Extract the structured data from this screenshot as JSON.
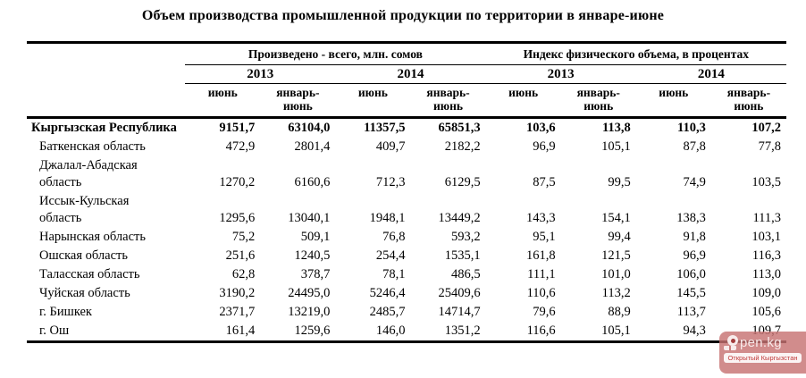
{
  "title": "Объем производства промышленной продукции по территории в январе-июне",
  "table": {
    "group_headers": [
      {
        "label": "Произведено - всего, млн. сомов"
      },
      {
        "label": "Индекс физического объема, в процентах"
      }
    ],
    "year_headers": [
      "2013",
      "2014",
      "2013",
      "2014"
    ],
    "period_headers": [
      "июнь",
      "январь-\nиюнь",
      "июнь",
      "январь-\nиюнь",
      "июнь",
      "январь-\nиюнь",
      "июнь",
      "январь-\nиюнь"
    ],
    "rows": [
      {
        "label": "Кыргызская Республика",
        "values": [
          "9151,7",
          "63104,0",
          "11357,5",
          "65851,3",
          "103,6",
          "113,8",
          "110,3",
          "107,2"
        ]
      },
      {
        "label": "Баткенская область",
        "values": [
          "472,9",
          "2801,4",
          "409,7",
          "2182,2",
          "96,9",
          "105,1",
          "87,8",
          "77,8"
        ]
      },
      {
        "label": "Джалал-Абадская\nобласть",
        "values": [
          "1270,2",
          "6160,6",
          "712,3",
          "6129,5",
          "87,5",
          "99,5",
          "74,9",
          "103,5"
        ]
      },
      {
        "label": "Иссык-Кульская\nобласть",
        "values": [
          "1295,6",
          "13040,1",
          "1948,1",
          "13449,2",
          "143,3",
          "154,1",
          "138,3",
          "111,3"
        ]
      },
      {
        "label": "Нарынская область",
        "values": [
          "75,2",
          "509,1",
          "76,8",
          "593,2",
          "95,1",
          "99,4",
          "91,8",
          "103,1"
        ]
      },
      {
        "label": "Ошская область",
        "values": [
          "251,6",
          "1240,5",
          "254,4",
          "1535,1",
          "161,8",
          "121,5",
          "96,9",
          "116,3"
        ]
      },
      {
        "label": "Таласская область",
        "values": [
          "62,8",
          "378,7",
          "78,1",
          "486,5",
          "111,1",
          "101,0",
          "106,0",
          "113,0"
        ]
      },
      {
        "label": "Чуйская область",
        "values": [
          "3190,2",
          "24495,0",
          "5246,4",
          "25409,6",
          "110,6",
          "113,2",
          "145,5",
          "109,0"
        ]
      },
      {
        "label": "г. Бишкек",
        "values": [
          "2371,7",
          "13219,0",
          "2485,7",
          "14714,7",
          "79,6",
          "88,9",
          "113,7",
          "105,6"
        ]
      },
      {
        "label": "г. Ош",
        "values": [
          "161,4",
          "1259,6",
          "146,0",
          "1351,2",
          "116,6",
          "105,1",
          "94,3",
          "109,7"
        ]
      }
    ]
  },
  "watermark": {
    "logo_text": "pen.kg",
    "caption": "Открытый Кыргызстан",
    "bg_color": "#c77373",
    "logo_text_color": "#f8eaea",
    "caption_color": "#c03a3a"
  }
}
